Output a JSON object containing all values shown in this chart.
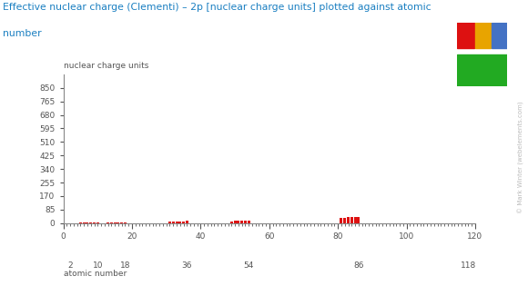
{
  "title_line1": "Effective nuclear charge (Clementi) – 2p [nuclear charge units] plotted against atomic",
  "title_line2": "number",
  "ylabel": "nuclear charge units",
  "xlabel": "atomic number",
  "xlim": [
    0,
    120
  ],
  "ylim": [
    0,
    935
  ],
  "yticks": [
    0,
    85,
    170,
    255,
    340,
    425,
    510,
    595,
    680,
    765,
    850
  ],
  "xticks_major": [
    0,
    20,
    40,
    60,
    80,
    100,
    120
  ],
  "xticks_special": [
    2,
    10,
    18,
    36,
    54,
    86,
    118
  ],
  "title_color": "#1a7fc1",
  "ylabel_color": "#555555",
  "xlabel_color": "#555555",
  "bg_color": "#ffffff",
  "bar_width": 0.8,
  "elements": [
    [
      1,
      0,
      "gold"
    ],
    [
      2,
      0,
      "gold"
    ],
    [
      3,
      0,
      "blue"
    ],
    [
      4,
      0,
      "blue"
    ],
    [
      5,
      2.58,
      "red"
    ],
    [
      6,
      3.22,
      "red"
    ],
    [
      7,
      3.85,
      "red"
    ],
    [
      8,
      4.49,
      "red"
    ],
    [
      9,
      5.13,
      "red"
    ],
    [
      10,
      5.76,
      "red"
    ],
    [
      11,
      0,
      "blue"
    ],
    [
      12,
      0,
      "blue"
    ],
    [
      13,
      4.12,
      "red"
    ],
    [
      14,
      4.29,
      "red"
    ],
    [
      15,
      4.89,
      "red"
    ],
    [
      16,
      5.48,
      "red"
    ],
    [
      17,
      6.12,
      "red"
    ],
    [
      18,
      6.76,
      "red"
    ],
    [
      19,
      0,
      "blue"
    ],
    [
      20,
      0,
      "blue"
    ],
    [
      21,
      0,
      "gold"
    ],
    [
      22,
      0,
      "gold"
    ],
    [
      23,
      0,
      "gold"
    ],
    [
      24,
      0,
      "gold"
    ],
    [
      25,
      0,
      "gold"
    ],
    [
      26,
      0,
      "gold"
    ],
    [
      27,
      0,
      "gold"
    ],
    [
      28,
      0,
      "gold"
    ],
    [
      29,
      0,
      "gold"
    ],
    [
      30,
      0,
      "gold"
    ],
    [
      31,
      8.29,
      "red"
    ],
    [
      32,
      9.28,
      "red"
    ],
    [
      33,
      10.31,
      "red"
    ],
    [
      34,
      11.33,
      "red"
    ],
    [
      35,
      12.36,
      "red"
    ],
    [
      36,
      13.38,
      "red"
    ],
    [
      37,
      0,
      "blue"
    ],
    [
      38,
      0,
      "blue"
    ],
    [
      39,
      0,
      "gold"
    ],
    [
      40,
      0,
      "gold"
    ],
    [
      41,
      0,
      "gold"
    ],
    [
      42,
      0,
      "gold"
    ],
    [
      43,
      0,
      "gold"
    ],
    [
      44,
      0,
      "gold"
    ],
    [
      45,
      0,
      "gold"
    ],
    [
      46,
      0,
      "gold"
    ],
    [
      47,
      0,
      "gold"
    ],
    [
      48,
      0,
      "gold"
    ],
    [
      49,
      12.41,
      "red"
    ],
    [
      50,
      13.35,
      "red"
    ],
    [
      51,
      14.29,
      "red"
    ],
    [
      52,
      15.24,
      "red"
    ],
    [
      53,
      16.18,
      "red"
    ],
    [
      54,
      17.13,
      "red"
    ],
    [
      55,
      0,
      "blue"
    ],
    [
      56,
      0,
      "blue"
    ],
    [
      57,
      0,
      "gold"
    ],
    [
      58,
      0,
      "green"
    ],
    [
      59,
      0,
      "green"
    ],
    [
      60,
      0,
      "green"
    ],
    [
      61,
      0,
      "green"
    ],
    [
      62,
      0,
      "green"
    ],
    [
      63,
      0,
      "green"
    ],
    [
      64,
      0,
      "green"
    ],
    [
      65,
      0,
      "green"
    ],
    [
      66,
      0,
      "green"
    ],
    [
      67,
      0,
      "green"
    ],
    [
      68,
      0,
      "green"
    ],
    [
      69,
      0,
      "green"
    ],
    [
      70,
      0,
      "green"
    ],
    [
      71,
      0,
      "green"
    ],
    [
      72,
      0,
      "gold"
    ],
    [
      73,
      0,
      "gold"
    ],
    [
      74,
      0,
      "gold"
    ],
    [
      75,
      0,
      "gold"
    ],
    [
      76,
      0,
      "gold"
    ],
    [
      77,
      0,
      "gold"
    ],
    [
      78,
      0,
      "gold"
    ],
    [
      79,
      0,
      "gold"
    ],
    [
      80,
      0,
      "gold"
    ],
    [
      81,
      32.95,
      "red"
    ],
    [
      82,
      34.22,
      "red"
    ],
    [
      83,
      35.48,
      "red"
    ],
    [
      84,
      36.73,
      "red"
    ],
    [
      85,
      37.97,
      "red"
    ],
    [
      86,
      39.21,
      "red"
    ],
    [
      87,
      0,
      "blue"
    ],
    [
      88,
      0,
      "blue"
    ],
    [
      89,
      0,
      "gold"
    ],
    [
      90,
      0,
      "green"
    ],
    [
      91,
      0,
      "green"
    ],
    [
      92,
      0,
      "green"
    ],
    [
      93,
      0,
      "green"
    ],
    [
      94,
      0,
      "green"
    ],
    [
      95,
      0,
      "green"
    ],
    [
      96,
      0,
      "green"
    ],
    [
      97,
      0,
      "green"
    ],
    [
      98,
      0,
      "green"
    ],
    [
      99,
      0,
      "green"
    ],
    [
      100,
      0,
      "green"
    ],
    [
      101,
      0,
      "green"
    ],
    [
      102,
      0,
      "green"
    ],
    [
      103,
      0,
      "green"
    ],
    [
      104,
      0,
      "gold"
    ],
    [
      105,
      0,
      "gold"
    ],
    [
      106,
      0,
      "gold"
    ],
    [
      107,
      0,
      "gold"
    ],
    [
      108,
      0,
      "gold"
    ],
    [
      109,
      0,
      "gold"
    ],
    [
      110,
      0,
      "gold"
    ],
    [
      111,
      0,
      "gold"
    ],
    [
      112,
      0,
      "gold"
    ],
    [
      113,
      0,
      "red"
    ],
    [
      114,
      0,
      "red"
    ],
    [
      115,
      0,
      "red"
    ],
    [
      116,
      0,
      "red"
    ],
    [
      117,
      0,
      "red"
    ],
    [
      118,
      0,
      "red"
    ]
  ],
  "color_map": {
    "gold": "#E8A400",
    "blue": "#4472C4",
    "red": "#DD1111",
    "green": "#22AA22"
  }
}
